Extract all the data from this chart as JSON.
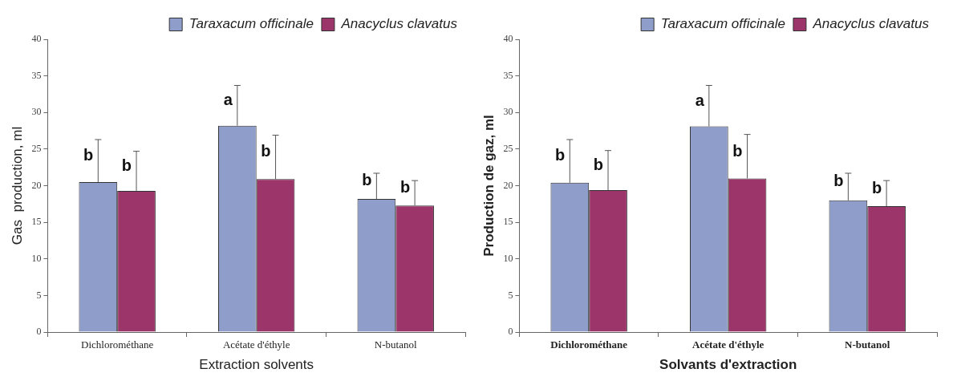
{
  "chart_data": [
    {
      "type": "bar",
      "xlabel": "Extraction solvents",
      "ylabel": "Gas  production, ml",
      "categories": [
        "Dichlorométhane",
        "Acétate d'éthyle",
        "N-butanol"
      ],
      "ylim": [
        0,
        40
      ],
      "yticks": [
        0,
        5,
        10,
        15,
        20,
        25,
        30,
        35,
        40
      ],
      "grid": false,
      "legend": "top right",
      "series": [
        {
          "name": "Taraxacum officinale",
          "color": "#8e9dc9",
          "values": [
            20.5,
            28.2,
            18.2
          ],
          "errors": [
            [
              20.5,
              26.3
            ],
            [
              28.2,
              33.7
            ],
            [
              18.2,
              21.7
            ]
          ],
          "value_labels": [
            "b",
            "a",
            "b"
          ]
        },
        {
          "name": "Anacyclus clavatus",
          "color": "#9c356a",
          "values": [
            19.3,
            20.9,
            17.3
          ],
          "errors": [
            [
              19.3,
              24.7
            ],
            [
              20.9,
              26.9
            ],
            [
              17.3,
              20.7
            ]
          ],
          "value_labels": [
            "b",
            "b",
            "b"
          ]
        }
      ]
    },
    {
      "type": "bar",
      "xlabel": "Solvants d'extraction",
      "ylabel": "Production de gaz, ml",
      "categories": [
        "Dichlorométhane",
        "Acétate d'éthyle",
        "N-butanol"
      ],
      "ylim": [
        0,
        40
      ],
      "yticks": [
        0,
        5,
        10,
        15,
        20,
        25,
        30,
        35,
        40
      ],
      "grid": false,
      "legend": "top right",
      "series": [
        {
          "name": "Taraxacum officinale",
          "color": "#8e9dc9",
          "values": [
            20.4,
            28.1,
            18.0
          ],
          "errors": [
            [
              20.4,
              26.3
            ],
            [
              28.1,
              33.7
            ],
            [
              18.0,
              21.7
            ]
          ],
          "value_labels": [
            "b",
            "a",
            "b"
          ]
        },
        {
          "name": "Anacyclus clavatus",
          "color": "#9c356a",
          "values": [
            19.4,
            21.0,
            17.2
          ],
          "errors": [
            [
              19.4,
              24.8
            ],
            [
              21.0,
              27.0
            ],
            [
              17.2,
              20.7
            ]
          ],
          "value_labels": [
            "b",
            "b",
            "b"
          ]
        }
      ]
    }
  ]
}
